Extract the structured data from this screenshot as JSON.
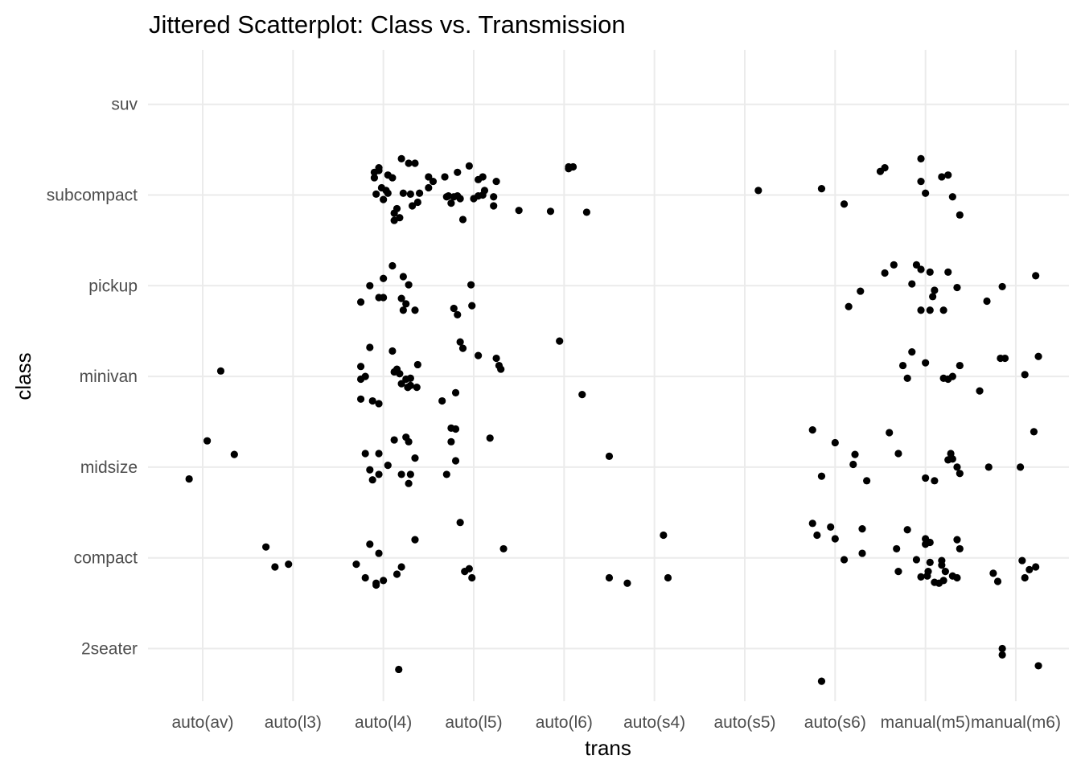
{
  "chart_data": {
    "type": "scatter",
    "title": "Jittered Scatterplot: Class vs. Transmission",
    "xlabel": "trans",
    "ylabel": "class",
    "x_categories": [
      "auto(av)",
      "auto(l3)",
      "auto(l4)",
      "auto(l5)",
      "auto(l6)",
      "auto(s4)",
      "auto(s5)",
      "auto(s6)",
      "manual(m5)",
      "manual(m6)"
    ],
    "y_categories": [
      "2seater",
      "compact",
      "midsize",
      "minivan",
      "pickup",
      "subcompact",
      "suv"
    ],
    "grid": true,
    "legend": "none",
    "point_color": "#000000",
    "points": [
      [
        2.95,
        6.3
      ],
      [
        2.98,
        6.08
      ],
      [
        3.03,
        6.05
      ],
      [
        3.0,
        5.95
      ],
      [
        2.9,
        6.19
      ],
      [
        3.1,
        6.19
      ],
      [
        3.2,
        6.4
      ],
      [
        3.28,
        6.35
      ],
      [
        3.35,
        6.35
      ],
      [
        3.5,
        6.08
      ],
      [
        3.55,
        6.15
      ],
      [
        3.4,
        6.02
      ],
      [
        3.38,
        5.92
      ],
      [
        3.32,
        5.88
      ],
      [
        3.15,
        5.85
      ],
      [
        3.12,
        5.8
      ],
      [
        3.18,
        5.75
      ],
      [
        3.12,
        5.72
      ],
      [
        2.9,
        6.25
      ],
      [
        2.92,
        6.01
      ],
      [
        3.05,
        6.02
      ],
      [
        3.22,
        6.02
      ],
      [
        3.3,
        6.01
      ],
      [
        3.05,
        6.22
      ],
      [
        2.95,
        6.27
      ],
      [
        3.5,
        6.2
      ],
      [
        3.68,
        6.2
      ],
      [
        3.82,
        6.25
      ],
      [
        3.95,
        6.32
      ],
      [
        4.05,
        6.17
      ],
      [
        4.12,
        6.05
      ],
      [
        4.1,
        6.0
      ],
      [
        4.1,
        6.2
      ],
      [
        4.25,
        6.15
      ],
      [
        3.7,
        5.98
      ],
      [
        3.72,
        5.99
      ],
      [
        3.78,
        5.98
      ],
      [
        3.82,
        5.99
      ],
      [
        3.85,
        5.96
      ],
      [
        4.0,
        5.96
      ],
      [
        4.05,
        5.99
      ],
      [
        4.22,
        5.98
      ],
      [
        4.22,
        5.88
      ],
      [
        4.5,
        5.83
      ],
      [
        3.75,
        5.91
      ],
      [
        3.88,
        5.73
      ],
      [
        5.05,
        6.29
      ],
      [
        5.05,
        6.31
      ],
      [
        5.1,
        6.31
      ],
      [
        5.25,
        5.81
      ],
      [
        4.85,
        5.82
      ],
      [
        3.0,
        5.08
      ],
      [
        3.1,
        5.22
      ],
      [
        3.22,
        5.1
      ],
      [
        3.28,
        5.01
      ],
      [
        2.95,
        4.87
      ],
      [
        3.0,
        4.87
      ],
      [
        3.2,
        4.86
      ],
      [
        3.25,
        4.8
      ],
      [
        3.22,
        4.73
      ],
      [
        3.35,
        4.73
      ],
      [
        2.85,
        5.0
      ],
      [
        2.75,
        4.82
      ],
      [
        3.78,
        4.75
      ],
      [
        3.82,
        4.68
      ],
      [
        3.98,
        4.78
      ],
      [
        3.97,
        5.01
      ],
      [
        2.75,
        4.11
      ],
      [
        2.85,
        4.32
      ],
      [
        3.1,
        4.28
      ],
      [
        3.12,
        4.05
      ],
      [
        3.15,
        4.08
      ],
      [
        3.38,
        4.13
      ],
      [
        3.2,
        3.92
      ],
      [
        3.27,
        3.88
      ],
      [
        3.37,
        3.88
      ],
      [
        2.88,
        3.73
      ],
      [
        2.95,
        3.7
      ],
      [
        3.8,
        3.82
      ],
      [
        3.85,
        4.38
      ],
      [
        3.88,
        4.31
      ],
      [
        4.05,
        4.23
      ],
      [
        4.25,
        4.2
      ],
      [
        4.28,
        4.12
      ],
      [
        4.3,
        4.08
      ],
      [
        2.75,
        3.97
      ],
      [
        3.65,
        3.73
      ],
      [
        1.2,
        4.06
      ],
      [
        2.8,
        4.0
      ],
      [
        2.75,
        3.75
      ],
      [
        3.18,
        4.03
      ],
      [
        3.25,
        3.97
      ],
      [
        3.3,
        3.98
      ],
      [
        3.27,
        3.88
      ],
      [
        3.3,
        3.9
      ],
      [
        4.95,
        4.39
      ],
      [
        5.2,
        3.8
      ],
      [
        1.05,
        3.29
      ],
      [
        1.35,
        3.14
      ],
      [
        0.85,
        2.87
      ],
      [
        2.8,
        3.15
      ],
      [
        2.95,
        3.15
      ],
      [
        3.05,
        3.02
      ],
      [
        3.12,
        3.3
      ],
      [
        3.25,
        3.33
      ],
      [
        3.28,
        3.28
      ],
      [
        3.35,
        3.1
      ],
      [
        2.85,
        2.97
      ],
      [
        2.95,
        2.92
      ],
      [
        3.3,
        2.92
      ],
      [
        3.28,
        2.82
      ],
      [
        3.2,
        2.92
      ],
      [
        2.88,
        2.86
      ],
      [
        3.75,
        3.28
      ],
      [
        3.8,
        3.42
      ],
      [
        3.75,
        3.43
      ],
      [
        3.7,
        2.92
      ],
      [
        4.18,
        3.32
      ],
      [
        3.8,
        3.07
      ],
      [
        5.5,
        3.12
      ],
      [
        7.75,
        3.41
      ],
      [
        8.0,
        3.27
      ],
      [
        8.2,
        3.03
      ],
      [
        8.22,
        3.14
      ],
      [
        7.85,
        2.9
      ],
      [
        8.35,
        2.85
      ],
      [
        8.6,
        3.38
      ],
      [
        8.7,
        3.15
      ],
      [
        9.0,
        2.88
      ],
      [
        9.1,
        2.85
      ],
      [
        9.25,
        3.08
      ],
      [
        9.3,
        3.09
      ],
      [
        9.28,
        3.15
      ],
      [
        9.35,
        3.0
      ],
      [
        9.38,
        2.93
      ],
      [
        9.7,
        3.0
      ],
      [
        10.05,
        3.0
      ],
      [
        10.2,
        3.39
      ],
      [
        1.7,
        2.12
      ],
      [
        1.95,
        1.93
      ],
      [
        1.8,
        1.9
      ],
      [
        2.7,
        1.93
      ],
      [
        2.85,
        2.15
      ],
      [
        2.95,
        2.05
      ],
      [
        3.0,
        1.75
      ],
      [
        3.2,
        1.9
      ],
      [
        3.35,
        2.2
      ],
      [
        3.15,
        1.82
      ],
      [
        2.92,
        1.72
      ],
      [
        2.92,
        1.7
      ],
      [
        2.8,
        1.78
      ],
      [
        3.17,
        0.77
      ],
      [
        3.85,
        2.39
      ],
      [
        3.9,
        1.85
      ],
      [
        3.98,
        1.78
      ],
      [
        3.95,
        1.88
      ],
      [
        4.33,
        2.1
      ],
      [
        5.5,
        1.78
      ],
      [
        5.7,
        1.72
      ],
      [
        6.1,
        2.25
      ],
      [
        6.15,
        1.78
      ],
      [
        7.75,
        2.38
      ],
      [
        7.95,
        2.34
      ],
      [
        8.1,
        1.98
      ],
      [
        8.3,
        2.32
      ],
      [
        8.3,
        2.05
      ],
      [
        8.0,
        2.21
      ],
      [
        7.8,
        2.25
      ],
      [
        8.68,
        2.1
      ],
      [
        8.8,
        2.31
      ],
      [
        8.9,
        1.98
      ],
      [
        8.95,
        1.79
      ],
      [
        9.0,
        2.15
      ],
      [
        9.05,
        1.95
      ],
      [
        9.02,
        1.8
      ],
      [
        9.03,
        1.85
      ],
      [
        9.1,
        1.73
      ],
      [
        8.7,
        1.85
      ],
      [
        9.15,
        1.72
      ],
      [
        9.2,
        1.75
      ],
      [
        9.22,
        1.85
      ],
      [
        9.38,
        2.1
      ],
      [
        9.35,
        2.2
      ],
      [
        9.18,
        1.97
      ],
      [
        9.18,
        1.92
      ],
      [
        9.0,
        2.21
      ],
      [
        9.05,
        2.17
      ],
      [
        9.3,
        1.8
      ],
      [
        9.35,
        1.78
      ],
      [
        9.75,
        1.83
      ],
      [
        9.8,
        1.74
      ],
      [
        10.07,
        1.97
      ],
      [
        10.1,
        1.78
      ],
      [
        10.15,
        1.87
      ],
      [
        10.22,
        1.9
      ],
      [
        9.85,
        0.93
      ],
      [
        9.85,
        1.0
      ],
      [
        10.25,
        0.81
      ],
      [
        7.85,
        0.64
      ],
      [
        8.15,
        4.77
      ],
      [
        8.28,
        4.94
      ],
      [
        8.55,
        5.14
      ],
      [
        8.65,
        5.23
      ],
      [
        8.85,
        5.02
      ],
      [
        9.05,
        5.15
      ],
      [
        8.9,
        5.23
      ],
      [
        9.1,
        4.95
      ],
      [
        8.95,
        5.18
      ],
      [
        9.25,
        5.15
      ],
      [
        8.95,
        4.73
      ],
      [
        9.05,
        4.73
      ],
      [
        9.2,
        4.73
      ],
      [
        9.08,
        4.88
      ],
      [
        9.35,
        4.98
      ],
      [
        9.68,
        4.83
      ],
      [
        9.85,
        4.99
      ],
      [
        10.22,
        5.11
      ],
      [
        8.85,
        4.27
      ],
      [
        8.75,
        4.12
      ],
      [
        8.8,
        3.98
      ],
      [
        9.0,
        4.15
      ],
      [
        9.2,
        3.98
      ],
      [
        9.25,
        3.97
      ],
      [
        9.3,
        4.0
      ],
      [
        9.38,
        4.12
      ],
      [
        9.6,
        3.84
      ],
      [
        9.83,
        4.2
      ],
      [
        9.88,
        4.2
      ],
      [
        10.1,
        4.02
      ],
      [
        10.25,
        4.22
      ],
      [
        8.5,
        6.26
      ],
      [
        8.95,
        6.15
      ],
      [
        9.0,
        6.02
      ],
      [
        9.18,
        6.2
      ],
      [
        9.25,
        6.22
      ],
      [
        9.3,
        5.98
      ],
      [
        9.38,
        5.78
      ],
      [
        8.55,
        6.3
      ],
      [
        8.95,
        6.4
      ],
      [
        7.85,
        6.07
      ],
      [
        8.1,
        5.9
      ],
      [
        7.15,
        6.05
      ]
    ]
  }
}
